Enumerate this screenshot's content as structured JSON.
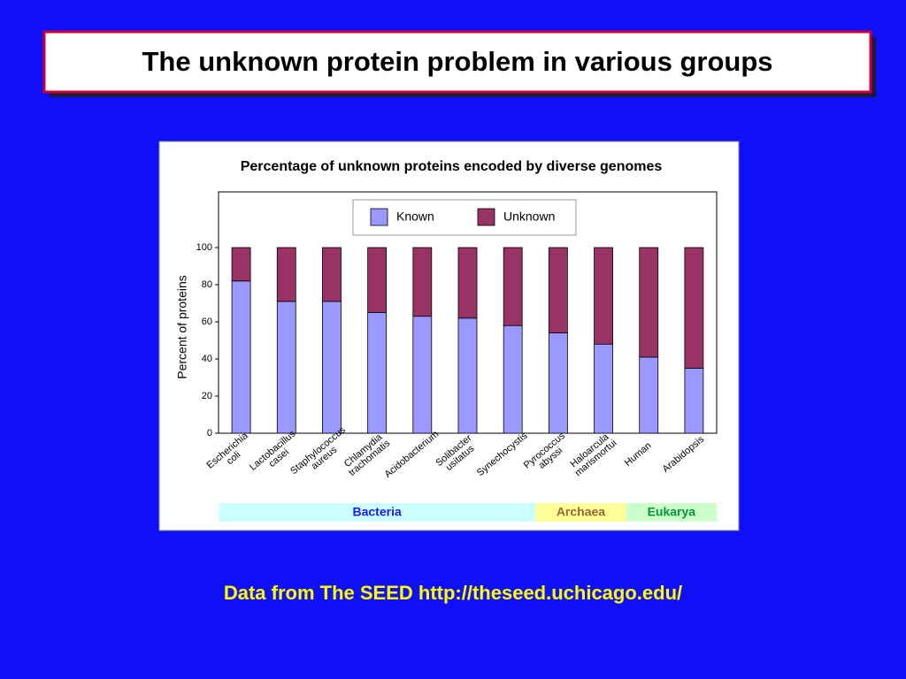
{
  "slide_title": "The unknown protein problem in various groups",
  "footer": "Data from The SEED http://theseed.uchicago.edu/",
  "chart_data": {
    "type": "stacked_bar",
    "title": "Percentage of unknown proteins encoded by diverse genomes",
    "y_label": "Percent of proteins",
    "groups": [
      {
        "name": "Bacteria",
        "color": "#ccffff",
        "text_color": "#1a1aff",
        "categories": [
          "Escherichia coli",
          "Lactobacillus casei",
          "Staphylococcus aureus",
          "Chlamydia trachomatis",
          "Acidobacterium",
          "Solibacter usitatus",
          "Synechocystis"
        ]
      },
      {
        "name": "Archaea",
        "color": "#ffff99",
        "text_color": "#996633",
        "categories": [
          "Pyrococcus abyssi",
          "Haloarcula marismortui"
        ]
      },
      {
        "name": "Eukarya",
        "color": "#ccffcc",
        "text_color": "#009933",
        "categories": [
          "Human",
          "Arabidopsis"
        ]
      }
    ],
    "series": [
      {
        "name": "Known",
        "color": "#9999ff",
        "values": [
          82,
          71,
          71,
          65,
          63,
          62,
          58,
          54,
          48,
          41,
          35
        ]
      },
      {
        "name": "Unknown",
        "color": "#993366",
        "values": [
          18,
          29,
          29,
          35,
          37,
          38,
          42,
          46,
          52,
          59,
          65
        ]
      }
    ],
    "ylim": [
      0,
      130
    ],
    "yticks": [
      0,
      20,
      40,
      60,
      80,
      100
    ]
  }
}
